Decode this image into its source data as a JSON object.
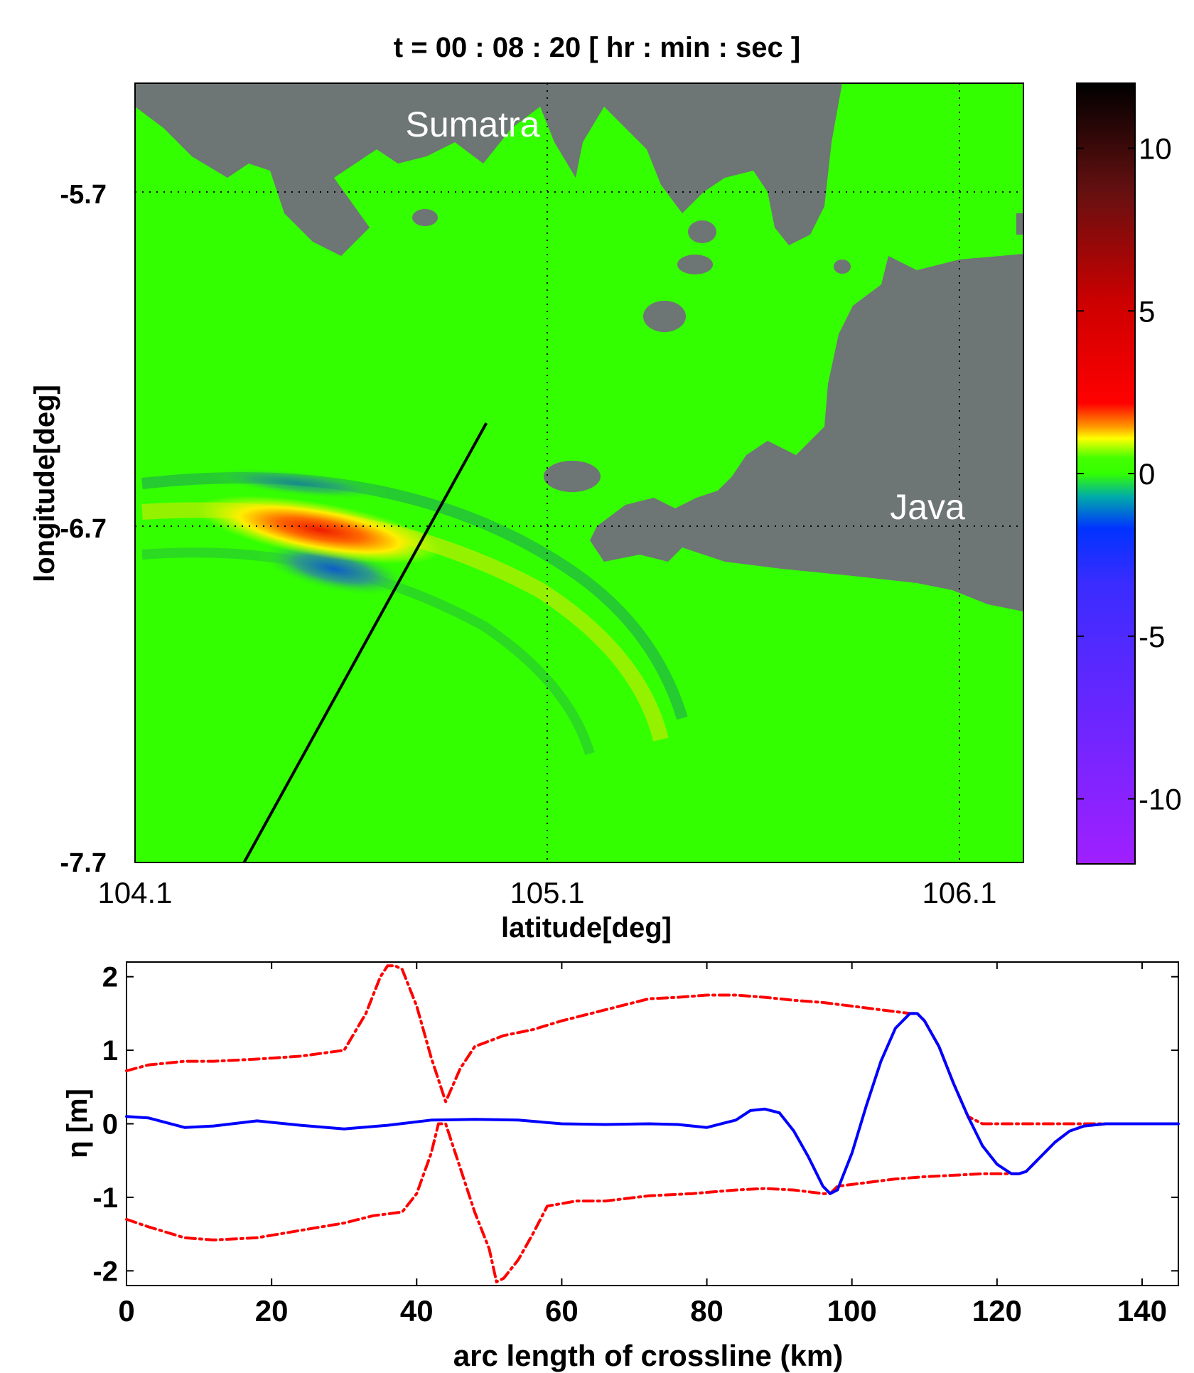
{
  "map": {
    "title": "t = 00 : 08 : 20 [ hr : min : sec ]",
    "xlabel": "latitude[deg]",
    "ylabel": "longitude[deg]",
    "xticks": [
      "104.1",
      "105.1",
      "106.1"
    ],
    "yticks": [
      "-5.7",
      "-6.7",
      "-7.7"
    ],
    "xlim": [
      104.1,
      106.3
    ],
    "ylim": [
      -7.7,
      -5.43
    ],
    "labels": {
      "sumatra": "Sumatra",
      "java": "Java"
    },
    "crossline": {
      "x": [
        104.37,
        104.97
      ],
      "y": [
        -7.7,
        -6.42
      ]
    },
    "colors": {
      "sea": "#33ff00",
      "land": "#6e7575",
      "crossline": "#000000"
    }
  },
  "colorbar": {
    "ticks": [
      "10",
      "5",
      "0",
      "-5",
      "-10"
    ],
    "range": [
      -12,
      12
    ],
    "colors": {
      "min": "#a020ff",
      "low": "#0033ff",
      "zero": "#33ff00",
      "mid": "#ffff00",
      "high": "#ff0000",
      "max": "#000000"
    }
  },
  "chart_data": {
    "type": "line",
    "xlabel": "arc length of crossline (km)",
    "ylabel": "η [m]",
    "xlim": [
      0,
      145
    ],
    "ylim": [
      -2.2,
      2.2
    ],
    "xticks": [
      "0",
      "20",
      "40",
      "60",
      "80",
      "100",
      "120",
      "140"
    ],
    "yticks": [
      "2",
      "1",
      "0",
      "-1",
      "-2"
    ],
    "grid": false,
    "series": [
      {
        "style": "solid",
        "color": "#0000ff",
        "x": [
          0,
          3,
          8,
          12,
          18,
          24,
          30,
          36,
          42,
          48,
          54,
          60,
          66,
          72,
          76,
          80,
          84,
          86,
          88,
          90,
          92,
          94,
          96,
          97,
          98,
          100,
          102,
          104,
          106,
          108,
          109,
          110,
          112,
          114,
          116,
          118,
          120,
          122,
          123,
          124,
          126,
          128,
          130,
          132,
          135,
          140,
          145
        ],
        "y": [
          0.1,
          0.08,
          -0.05,
          -0.03,
          0.04,
          -0.02,
          -0.07,
          -0.02,
          0.05,
          0.06,
          0.05,
          0.0,
          -0.01,
          0.0,
          -0.01,
          -0.05,
          0.05,
          0.18,
          0.2,
          0.15,
          -0.1,
          -0.45,
          -0.85,
          -0.95,
          -0.9,
          -0.4,
          0.25,
          0.85,
          1.3,
          1.5,
          1.5,
          1.4,
          1.05,
          0.55,
          0.1,
          -0.3,
          -0.55,
          -0.68,
          -0.68,
          -0.65,
          -0.45,
          -0.25,
          -0.1,
          -0.03,
          0.0,
          0.0,
          0.0
        ]
      },
      {
        "style": "dashdot",
        "color": "#ff0000",
        "x": [
          0,
          3,
          8,
          12,
          18,
          24,
          30,
          33,
          35,
          36,
          37,
          38,
          40,
          42,
          44,
          46,
          48,
          52,
          56,
          60,
          64,
          68,
          72,
          76,
          80,
          84,
          88,
          92,
          96,
          100,
          104,
          108,
          109,
          110,
          112,
          114,
          116,
          118,
          120,
          125,
          130,
          135,
          140,
          145
        ],
        "y": [
          0.72,
          0.8,
          0.85,
          0.85,
          0.88,
          0.92,
          1.0,
          1.5,
          2.0,
          2.15,
          2.15,
          2.1,
          1.6,
          0.9,
          0.3,
          0.75,
          1.05,
          1.2,
          1.28,
          1.4,
          1.5,
          1.6,
          1.7,
          1.72,
          1.75,
          1.75,
          1.72,
          1.68,
          1.65,
          1.6,
          1.55,
          1.5,
          1.5,
          1.4,
          1.05,
          0.55,
          0.1,
          0.0,
          0.0,
          0.0,
          0.0,
          0.0,
          0.0,
          0.0
        ]
      },
      {
        "style": "dashdot",
        "color": "#ff0000",
        "x": [
          0,
          3,
          8,
          12,
          18,
          24,
          30,
          34,
          38,
          40,
          42,
          43,
          44,
          46,
          48,
          50,
          51,
          52,
          54,
          56,
          58,
          62,
          66,
          72,
          78,
          84,
          88,
          92,
          96,
          97,
          98,
          102,
          106,
          110,
          114,
          118,
          122,
          123,
          124,
          126,
          128,
          130,
          132,
          135,
          140,
          145
        ],
        "y": [
          -1.3,
          -1.4,
          -1.55,
          -1.58,
          -1.55,
          -1.45,
          -1.35,
          -1.25,
          -1.2,
          -0.95,
          -0.4,
          0.0,
          0.0,
          -0.6,
          -1.2,
          -1.7,
          -2.15,
          -2.1,
          -1.85,
          -1.5,
          -1.12,
          -1.05,
          -1.05,
          -0.98,
          -0.95,
          -0.9,
          -0.88,
          -0.9,
          -0.95,
          -0.95,
          -0.85,
          -0.8,
          -0.75,
          -0.72,
          -0.7,
          -0.68,
          -0.68,
          -0.68,
          -0.65,
          -0.45,
          -0.25,
          -0.1,
          -0.03,
          0.0,
          0.0,
          0.0
        ]
      }
    ]
  }
}
